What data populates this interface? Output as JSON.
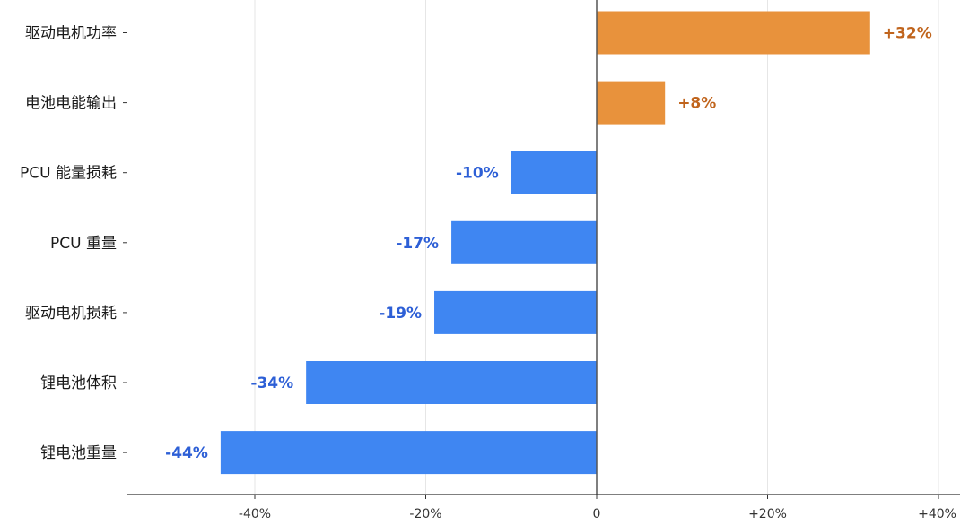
{
  "chart_data": {
    "type": "bar",
    "orientation": "horizontal",
    "categories": [
      "驱动电机功率",
      "电池电能输出",
      "PCU 能量损耗",
      "PCU 重量",
      "驱动电机损耗",
      "锂电池体积",
      "锂电池重量"
    ],
    "values": [
      32,
      8,
      -10,
      -17,
      -19,
      -34,
      -44
    ],
    "value_labels": [
      "+32%",
      "+8%",
      "-10%",
      "-17%",
      "-19%",
      "-34%",
      "-44%"
    ],
    "xlim": [
      -55,
      43
    ],
    "xticks": [
      -40,
      -20,
      0,
      20,
      40
    ],
    "xtick_labels": [
      "-40%",
      "-20%",
      "0",
      "+20%",
      "+40%"
    ],
    "grid": "vertical",
    "colors": {
      "positive_bar": "#E8923C",
      "negative_bar": "#3F86F2",
      "positive_label": "#C0641C",
      "negative_label": "#2D5FD6",
      "grid": "#e6e6e6",
      "axis": "#333333"
    }
  }
}
